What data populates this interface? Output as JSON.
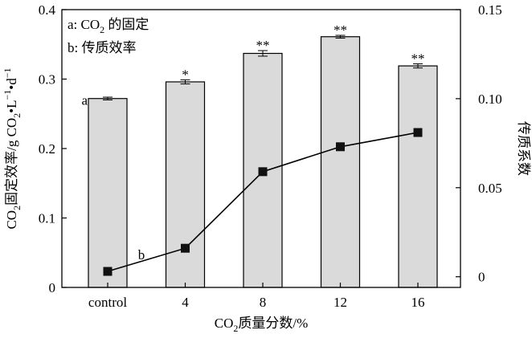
{
  "chart_data": {
    "type": "bar",
    "categories": [
      "control",
      "4",
      "8",
      "12",
      "16"
    ],
    "series": [
      {
        "axis": "left",
        "type": "bar",
        "values": [
          0.272,
          0.296,
          0.337,
          0.361,
          0.319
        ],
        "errors": [
          0.002,
          0.003,
          0.004,
          0.002,
          0.003
        ],
        "significance": [
          "",
          "*",
          "**",
          "**",
          "**"
        ]
      },
      {
        "axis": "right",
        "type": "line",
        "values": [
          0.003,
          0.016,
          0.059,
          0.073,
          0.081
        ]
      }
    ],
    "y_left": {
      "ylim": [
        0,
        0.4
      ],
      "ticks": [
        "0",
        "0.1",
        "0.2",
        "0.3",
        "0.4"
      ],
      "label_parts": [
        "CO",
        "2",
        "固定效率/g CO",
        "2",
        "•",
        "L",
        "−1",
        "•",
        "d",
        "−1"
      ]
    },
    "y_right": {
      "ylim": [
        -0.006,
        0.15
      ],
      "ticks": [
        "0",
        "0.05",
        "0.10",
        "0.15"
      ],
      "tick_values": [
        0,
        0.05,
        0.1,
        0.15
      ],
      "label": "传质系数"
    },
    "x_label_parts": [
      "CO",
      "2",
      "质量分数/%"
    ],
    "legend": [
      {
        "key": "a",
        "parts": [
          "a: CO",
          "2",
          " 的固定"
        ]
      },
      {
        "key": "b",
        "parts": [
          "b: 传质效率"
        ]
      }
    ],
    "annotations": {
      "bar_series": "a",
      "line_series": "b"
    },
    "colors": {
      "bar_fill": "#dadada",
      "stroke": "#000000",
      "marker": "#111111"
    },
    "grid": false,
    "legend_placement": "top-left"
  }
}
